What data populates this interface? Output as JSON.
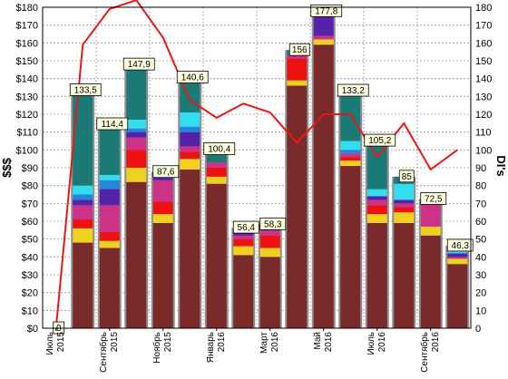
{
  "chart_data": {
    "type": "bar",
    "stacked": true,
    "ylabel_left": "$$$",
    "ylabel_right": "DI's",
    "ylim_left": [
      0,
      180
    ],
    "ylim_right": [
      0,
      180
    ],
    "grid": true,
    "left_tick_labels": [
      "$0",
      "$10",
      "$20",
      "$30",
      "$40",
      "$50",
      "$60",
      "$70",
      "$80",
      "$90",
      "$100",
      "$110",
      "$120",
      "$130",
      "$140",
      "$150",
      "$160",
      "$170",
      "$180"
    ],
    "right_tick_labels": [
      "0",
      "10",
      "20",
      "30",
      "40",
      "50",
      "60",
      "70",
      "80",
      "90",
      "100",
      "110",
      "120",
      "130",
      "140",
      "150",
      "160",
      "170",
      "180"
    ],
    "x_tick_labels": [
      {
        "month": "Июль",
        "year": "2015"
      },
      {
        "month": "Сентябрь",
        "year": "2015"
      },
      {
        "month": "Ноябрь",
        "year": "2015"
      },
      {
        "month": "Январь",
        "year": "2016"
      },
      {
        "month": "Март",
        "year": "2016"
      },
      {
        "month": "Май",
        "year": "2016"
      },
      {
        "month": "Июль",
        "year": "2016"
      },
      {
        "month": "Сентябрь",
        "year": "2016"
      }
    ],
    "totals": [
      "0",
      "133,5",
      "114,4",
      "147,9",
      "87,6",
      "140,6",
      "100,4",
      "56,4",
      "58,3",
      "156",
      "177,8",
      "133,2",
      "105,2",
      "85",
      "72,5",
      "46,3"
    ],
    "total_values": [
      0,
      133.5,
      114.4,
      147.9,
      87.6,
      140.6,
      100.4,
      56.4,
      58.3,
      156,
      177.8,
      133.2,
      105.2,
      85,
      72.5,
      46.3
    ],
    "segment_colors": [
      "#7a2a2a",
      "#f0d020",
      "#ee1111",
      "#cc3388",
      "#5522aa",
      "#2288dd",
      "#33ddee",
      "#1c7a76"
    ],
    "segments": [
      [
        0,
        0,
        0,
        0,
        0,
        0,
        0,
        0
      ],
      [
        48,
        8,
        5,
        8,
        3,
        3,
        5,
        53.5
      ],
      [
        45,
        4,
        5,
        15,
        9,
        5,
        3,
        28.4
      ],
      [
        82,
        8,
        10,
        7,
        3,
        2,
        5,
        30.9
      ],
      [
        59,
        5,
        7,
        12,
        4,
        0,
        0,
        0.6
      ],
      [
        89,
        6,
        4,
        3,
        8,
        3,
        8,
        19.6
      ],
      [
        81,
        4,
        5,
        3,
        0,
        0,
        0,
        7.4
      ],
      [
        41,
        5,
        4,
        2,
        3,
        0,
        0,
        1.4
      ],
      [
        40,
        5,
        7,
        3,
        2,
        0,
        0,
        1.3
      ],
      [
        136,
        3,
        12,
        2,
        0,
        0,
        0,
        3
      ],
      [
        159,
        3,
        0,
        2,
        11,
        2,
        0,
        0.8
      ],
      [
        91,
        3,
        2,
        2,
        0,
        2,
        5,
        28.2
      ],
      [
        59,
        5,
        5,
        3,
        2,
        0,
        4,
        27.2
      ],
      [
        59,
        6,
        3,
        2,
        2,
        0,
        9,
        4
      ],
      [
        52,
        5,
        0,
        15,
        0,
        0,
        0,
        0.5
      ],
      [
        36,
        3,
        0,
        1,
        2,
        0,
        3,
        1.3
      ]
    ],
    "line_values": [
      0,
      159,
      179,
      184,
      163,
      128,
      118,
      126,
      121,
      104,
      120,
      120,
      96,
      115,
      89,
      100
    ]
  }
}
